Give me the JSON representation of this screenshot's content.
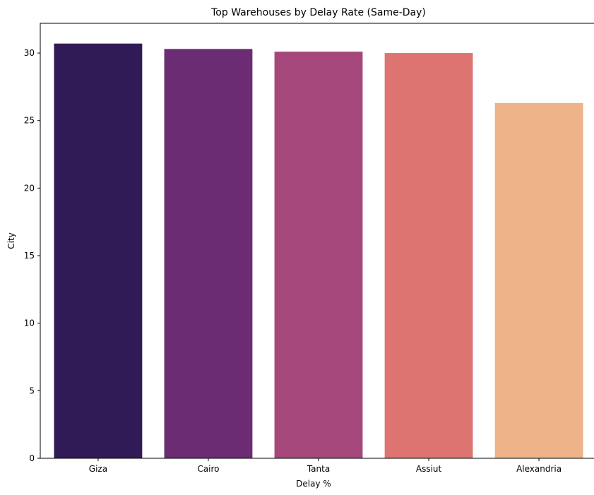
{
  "chart_data": {
    "type": "bar",
    "title": "Top Warehouses by Delay Rate (Same-Day)",
    "xlabel": "Delay %",
    "ylabel": "City",
    "categories": [
      "Giza",
      "Cairo",
      "Tanta",
      "Assiut",
      "Alexandria"
    ],
    "values": [
      30.7,
      30.3,
      30.1,
      30.0,
      26.3
    ],
    "colors": [
      "#311b57",
      "#6b2c74",
      "#a5477a",
      "#de7472",
      "#eeb388"
    ],
    "ylim": [
      0,
      32.2
    ],
    "yticks": [
      0,
      5,
      10,
      15,
      20,
      25,
      30
    ],
    "grid": false,
    "legend": "none"
  }
}
